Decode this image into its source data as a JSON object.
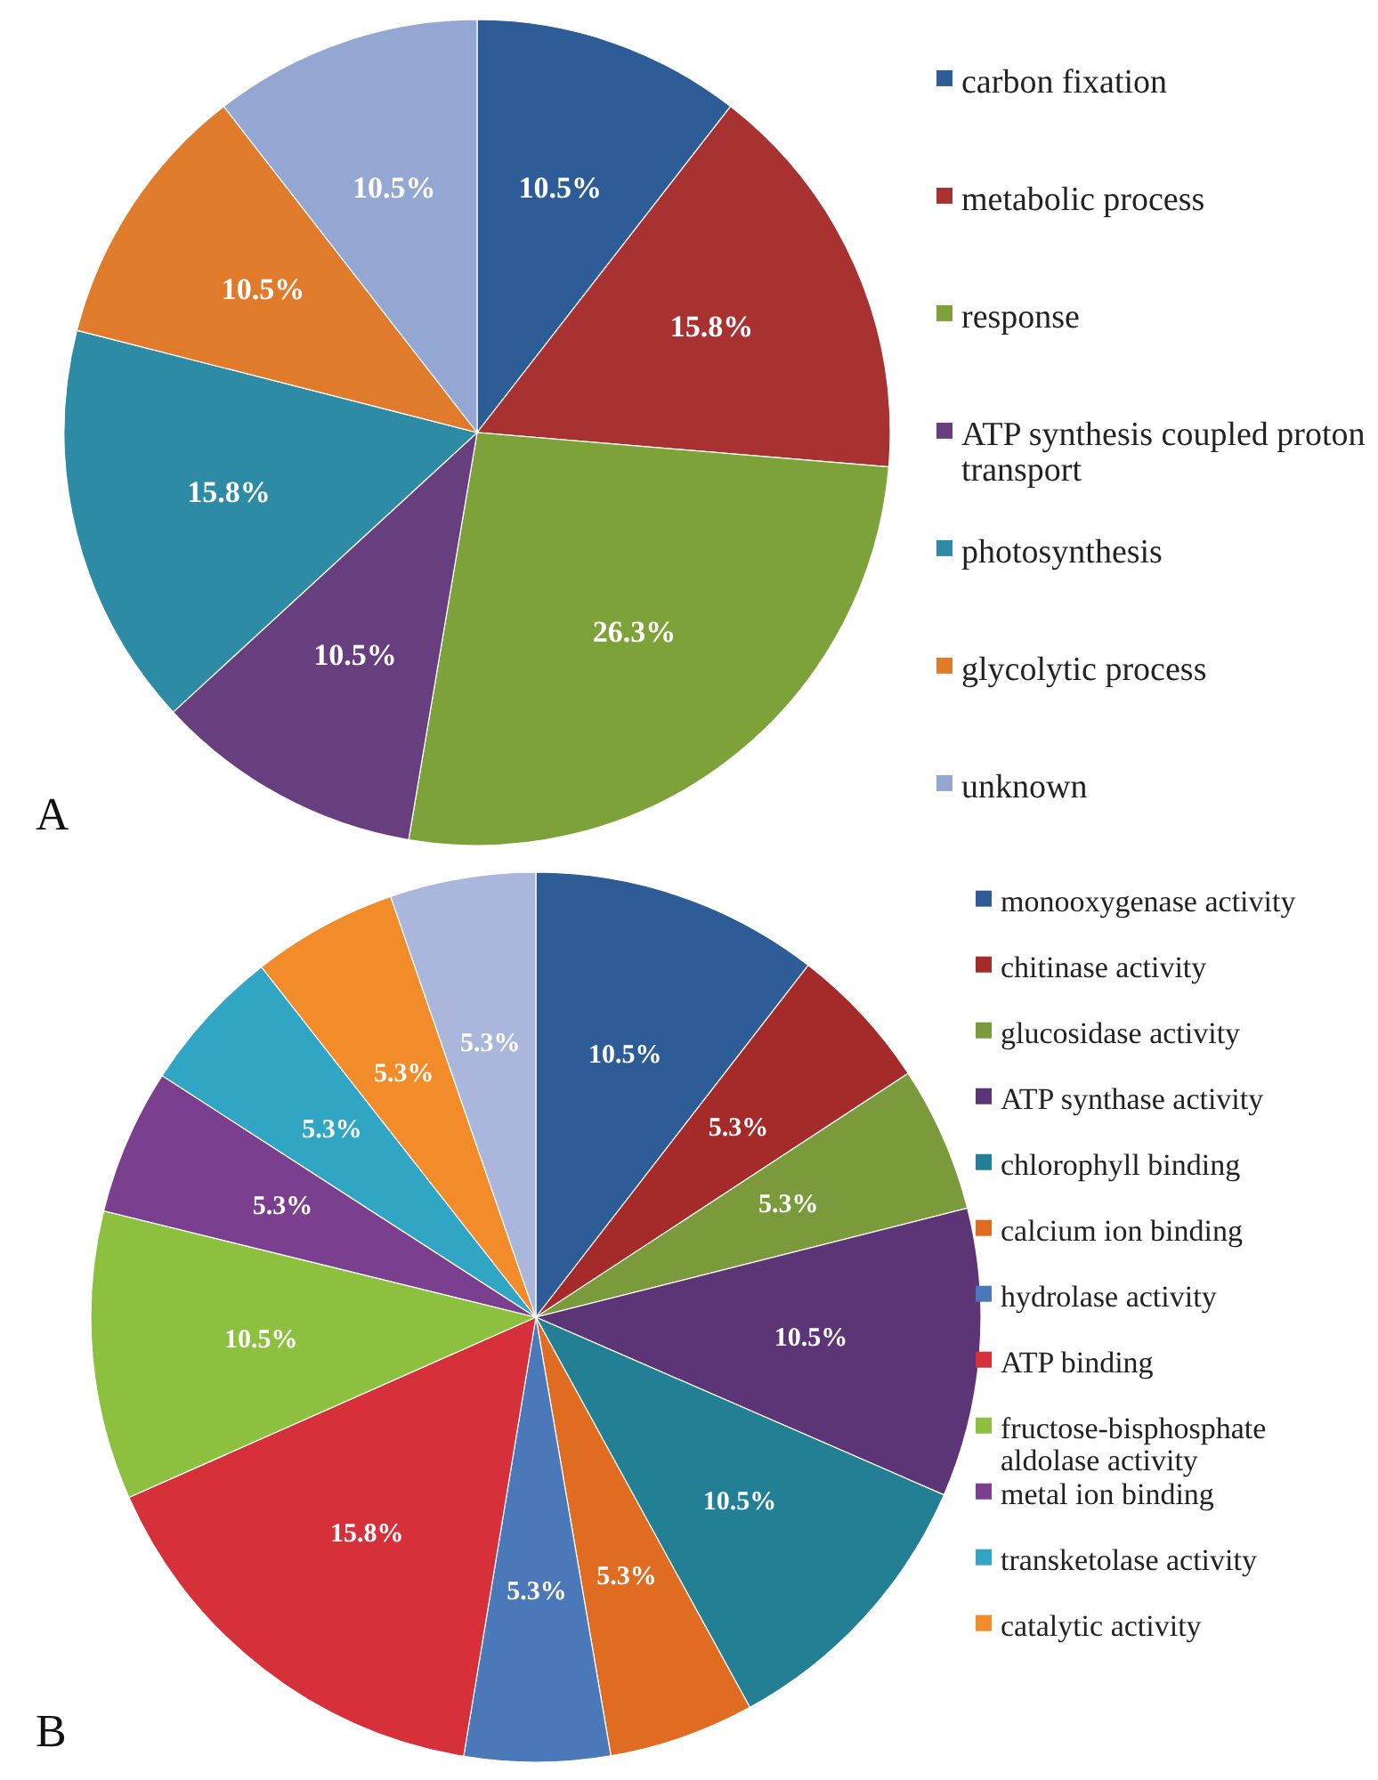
{
  "chart_data": [
    {
      "type": "pie",
      "annotations": [
        "A"
      ],
      "categories": [
        "carbon fixation",
        "metabolic process",
        "response",
        "ATP synthesis coupled proton transport",
        "photosynthesis",
        "glycolytic process",
        "unknown"
      ],
      "values": [
        10.5,
        15.8,
        26.3,
        10.5,
        15.8,
        10.5,
        10.5
      ],
      "value_labels": [
        "10.5%",
        "15.8%",
        "26.3%",
        "10.5%",
        "15.8%",
        "10.5%",
        "10.5%"
      ],
      "colors": [
        "#2e5c96",
        "#a83232",
        "#7ea23a",
        "#673f7e",
        "#2e8ba6",
        "#e07b2c",
        "#94a7d3"
      ],
      "legend": "right"
    },
    {
      "type": "pie",
      "annotations": [
        "B"
      ],
      "categories": [
        "monooxygenase activity",
        "chitinase activity",
        "glucosidase activity",
        "ATP synthase activity",
        "chlorophyll binding",
        "calcium ion binding",
        "hydrolase activity",
        "ATP binding",
        "fructose-bisphosphate aldolase activity",
        "metal ion binding",
        "transketolase activity",
        "catalytic activity",
        null
      ],
      "values": [
        10.5,
        5.3,
        5.3,
        10.5,
        10.5,
        5.3,
        5.3,
        15.8,
        10.5,
        5.3,
        5.3,
        5.3,
        5.3
      ],
      "value_labels": [
        "10.5%",
        "5.3%",
        "5.3%",
        "10.5%",
        "10.5%",
        "5.3%",
        "5.3%",
        "15.8%",
        "10.5%",
        "5.3%",
        "5.3%",
        "5.3%",
        "5.3%"
      ],
      "colors": [
        "#2e5c96",
        "#a52a2a",
        "#7a9a3b",
        "#5c3577",
        "#237f93",
        "#e06c22",
        "#4a78b8",
        "#d6313a",
        "#8dc03f",
        "#7b3f8f",
        "#31a6c4",
        "#f28b2a",
        "#aab6dc"
      ],
      "legend": "right"
    }
  ]
}
